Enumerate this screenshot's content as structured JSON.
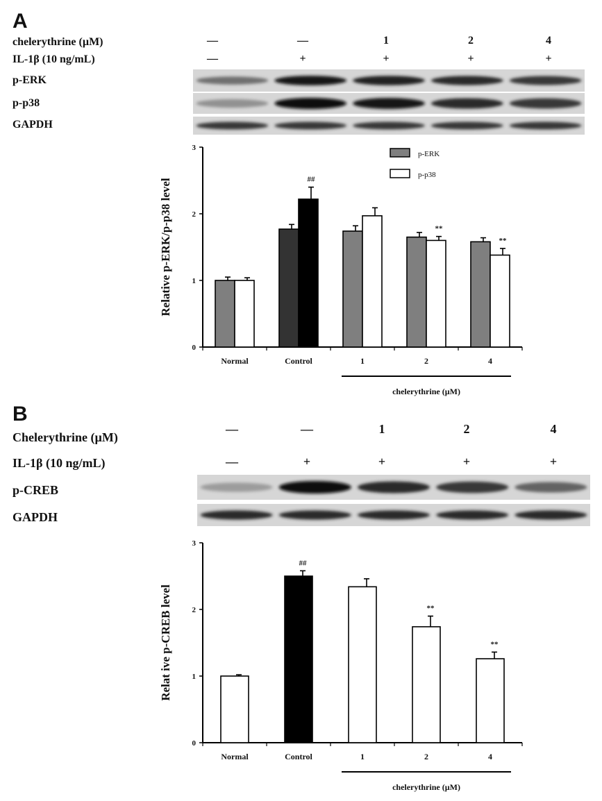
{
  "panelA": {
    "letter": "A",
    "row_labels": [
      "chelerythrine (µM)",
      "IL-1β (10 ng/mL)",
      "p-ERK",
      "p-p38",
      "GAPDH"
    ],
    "treatment_row": [
      "—",
      "—",
      "1",
      "2",
      "4"
    ],
    "il1b_row": [
      "—",
      "+",
      "+",
      "+",
      "+"
    ],
    "bands": {
      "p-ERK": [
        0.55,
        0.95,
        0.9,
        0.85,
        0.8
      ],
      "p-p38": [
        0.4,
        1.0,
        0.95,
        0.85,
        0.8
      ],
      "GAPDH": [
        0.8,
        0.8,
        0.8,
        0.8,
        0.8
      ]
    }
  },
  "panelB": {
    "letter": "B",
    "row_labels": [
      "Chelerythrine (µM)",
      "IL-1β (10 ng/mL)",
      "p-CREB",
      "GAPDH"
    ],
    "treatment_row": [
      "—",
      "—",
      "1",
      "2",
      "4"
    ],
    "il1b_row": [
      "—",
      "+",
      "+",
      "+",
      "+"
    ],
    "bands": {
      "p-CREB": [
        0.35,
        1.0,
        0.85,
        0.8,
        0.6
      ],
      "GAPDH": [
        0.85,
        0.85,
        0.85,
        0.85,
        0.85
      ]
    }
  },
  "chart_data": [
    {
      "type": "bar",
      "panel": "A",
      "categories": [
        "Normal",
        "Control",
        "1",
        "2",
        "4"
      ],
      "ylabel": "Relative  p-ERK/p-p38  level",
      "xlabel": "chelerythrine (µM)",
      "ylim": [
        0,
        3
      ],
      "yticks": [
        "0",
        "1",
        "2",
        "3"
      ],
      "legend_position": "top-right",
      "series": [
        {
          "name": "p-ERK",
          "values": [
            1.0,
            1.77,
            1.74,
            1.65,
            1.58
          ],
          "errors": [
            0.05,
            0.07,
            0.08,
            0.07,
            0.06
          ],
          "color": "#7f7f7f"
        },
        {
          "name": "p-p38",
          "values": [
            1.0,
            2.22,
            1.97,
            1.6,
            1.38
          ],
          "errors": [
            0.04,
            0.18,
            0.12,
            0.06,
            0.1
          ],
          "color": "#ffffff"
        }
      ],
      "control_colors": [
        "#333333",
        "#000000"
      ],
      "annotations": [
        {
          "text": "##",
          "category": "Control",
          "series": 1
        },
        {
          "text": "**",
          "category": "2",
          "series": 1
        },
        {
          "text": "**",
          "category": "4",
          "series": 1
        }
      ]
    },
    {
      "type": "bar",
      "panel": "B",
      "categories": [
        "Normal",
        "Control",
        "1",
        "2",
        "4"
      ],
      "ylabel": "Relat ive  p-CREB  level",
      "xlabel": "chelerythrine (µM)",
      "ylim": [
        0,
        3
      ],
      "yticks": [
        "0",
        "1",
        "2",
        "3"
      ],
      "values": [
        1.0,
        2.5,
        2.34,
        1.74,
        1.26
      ],
      "errors": [
        0.02,
        0.08,
        0.12,
        0.16,
        0.1
      ],
      "colors": [
        "#ffffff",
        "#000000",
        "#ffffff",
        "#ffffff",
        "#ffffff"
      ],
      "annotations": [
        {
          "text": "##",
          "category": "Control"
        },
        {
          "text": "**",
          "category": "2"
        },
        {
          "text": "**",
          "category": "4"
        }
      ]
    }
  ]
}
